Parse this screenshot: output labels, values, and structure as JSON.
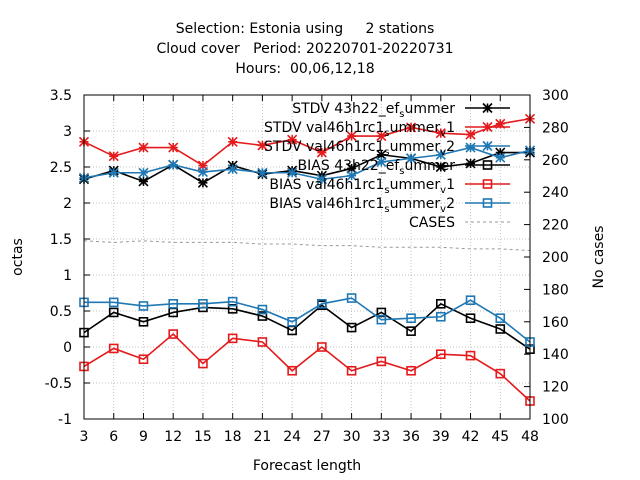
{
  "chart_data": {
    "type": "line",
    "title_lines": [
      "Selection: Estonia using     2 stations",
      "Cloud cover   Period: 20220701-20220731",
      "Hours:  00,06,12,18"
    ],
    "xlabel": "Forecast length",
    "ylabel": "octas",
    "y2label": "No cases",
    "x": [
      3,
      6,
      9,
      12,
      15,
      18,
      21,
      24,
      27,
      30,
      33,
      36,
      39,
      42,
      45,
      48
    ],
    "xlim": [
      3,
      48
    ],
    "ylim": [
      -1,
      3.5
    ],
    "y2lim": [
      100,
      300
    ],
    "yticks": [
      "-1",
      "-0.5",
      "0",
      "0.5",
      "1",
      "1.5",
      "2",
      "2.5",
      "3",
      "3.5"
    ],
    "yticks_values": [
      -1,
      -0.5,
      0,
      0.5,
      1,
      1.5,
      2,
      2.5,
      3,
      3.5
    ],
    "y2ticks": [
      "100",
      "120",
      "140",
      "160",
      "180",
      "200",
      "220",
      "240",
      "260",
      "280",
      "300"
    ],
    "y2ticks_values": [
      100,
      120,
      140,
      160,
      180,
      200,
      220,
      240,
      260,
      280,
      300
    ],
    "xticks": [
      "3",
      "6",
      "9",
      "12",
      "15",
      "18",
      "21",
      "24",
      "27",
      "30",
      "33",
      "36",
      "39",
      "42",
      "45",
      "48"
    ],
    "grid": true,
    "legend_position": "top-right",
    "series": [
      {
        "name": "STDV 43h22_ef_summer",
        "legend_parts": [
          [
            "STDV 43h22_ef",
            ""
          ],
          [
            "s",
            "sub"
          ],
          [
            "ummer",
            ""
          ]
        ],
        "color": "#000000",
        "marker": "star",
        "dash": "solid",
        "axis": "y1",
        "values": [
          2.33,
          2.45,
          2.3,
          2.53,
          2.28,
          2.52,
          2.4,
          2.45,
          2.38,
          2.48,
          2.67,
          2.62,
          2.5,
          2.55,
          2.7,
          2.7
        ]
      },
      {
        "name": "STDV val46h1rc1_summer_v1",
        "legend_parts": [
          [
            "STDV val46h1rc1",
            ""
          ],
          [
            "s",
            "sub"
          ],
          [
            "ummer",
            ""
          ],
          [
            "v",
            "sub"
          ],
          [
            "1",
            ""
          ]
        ],
        "color": "#e41a1c",
        "marker": "star",
        "dash": "solid",
        "axis": "y1",
        "values": [
          2.85,
          2.65,
          2.77,
          2.77,
          2.52,
          2.85,
          2.8,
          2.88,
          2.7,
          2.93,
          2.93,
          3.05,
          2.97,
          2.95,
          3.1,
          3.17
        ]
      },
      {
        "name": "STDV val46h1rc1_summer_v2",
        "legend_parts": [
          [
            "STDV val46h1rc1",
            ""
          ],
          [
            "s",
            "sub"
          ],
          [
            "ummer",
            ""
          ],
          [
            "v",
            "sub"
          ],
          [
            "2",
            ""
          ]
        ],
        "color": "#1f78b4",
        "marker": "star",
        "dash": "solid",
        "axis": "y1",
        "values": [
          2.35,
          2.42,
          2.42,
          2.53,
          2.43,
          2.47,
          2.42,
          2.42,
          2.33,
          2.38,
          2.57,
          2.62,
          2.67,
          2.77,
          2.63,
          2.73
        ]
      },
      {
        "name": "BIAS 43h22_ef_summer",
        "legend_parts": [
          [
            "BIAS 43h22_ef",
            ""
          ],
          [
            "s",
            "sub"
          ],
          [
            "ummer",
            ""
          ]
        ],
        "color": "#000000",
        "marker": "square",
        "dash": "solid",
        "axis": "y1",
        "values": [
          0.2,
          0.48,
          0.35,
          0.48,
          0.55,
          0.53,
          0.43,
          0.23,
          0.58,
          0.27,
          0.48,
          0.22,
          0.6,
          0.4,
          0.25,
          -0.03
        ]
      },
      {
        "name": "BIAS val46h1rc1_summer_v1",
        "legend_parts": [
          [
            "BIAS val46h1rc1",
            ""
          ],
          [
            "s",
            "sub"
          ],
          [
            "ummer",
            ""
          ],
          [
            "v",
            "sub"
          ],
          [
            "1",
            ""
          ]
        ],
        "color": "#e41a1c",
        "marker": "square",
        "dash": "solid",
        "axis": "y1",
        "values": [
          -0.27,
          -0.02,
          -0.17,
          0.18,
          -0.23,
          0.12,
          0.07,
          -0.33,
          0.0,
          -0.33,
          -0.2,
          -0.33,
          -0.1,
          -0.12,
          -0.37,
          -0.75
        ]
      },
      {
        "name": "BIAS val46h1rc1_summer_v2",
        "legend_parts": [
          [
            "BIAS val46h1rc1",
            ""
          ],
          [
            "s",
            "sub"
          ],
          [
            "ummer",
            ""
          ],
          [
            "v",
            "sub"
          ],
          [
            "2",
            ""
          ]
        ],
        "color": "#1f78b4",
        "marker": "square",
        "dash": "solid",
        "axis": "y1",
        "values": [
          0.62,
          0.62,
          0.57,
          0.6,
          0.6,
          0.63,
          0.52,
          0.35,
          0.6,
          0.68,
          0.38,
          0.4,
          0.42,
          0.65,
          0.4,
          0.07
        ]
      },
      {
        "name": "CASES",
        "legend_parts": [
          [
            "CASES",
            ""
          ]
        ],
        "color": "#999999",
        "marker": "none",
        "dash": "dashed",
        "axis": "y2",
        "values": [
          210,
          209,
          210,
          209,
          209,
          209,
          208,
          208,
          207,
          207,
          206,
          206,
          206,
          205,
          205,
          204
        ]
      }
    ]
  }
}
